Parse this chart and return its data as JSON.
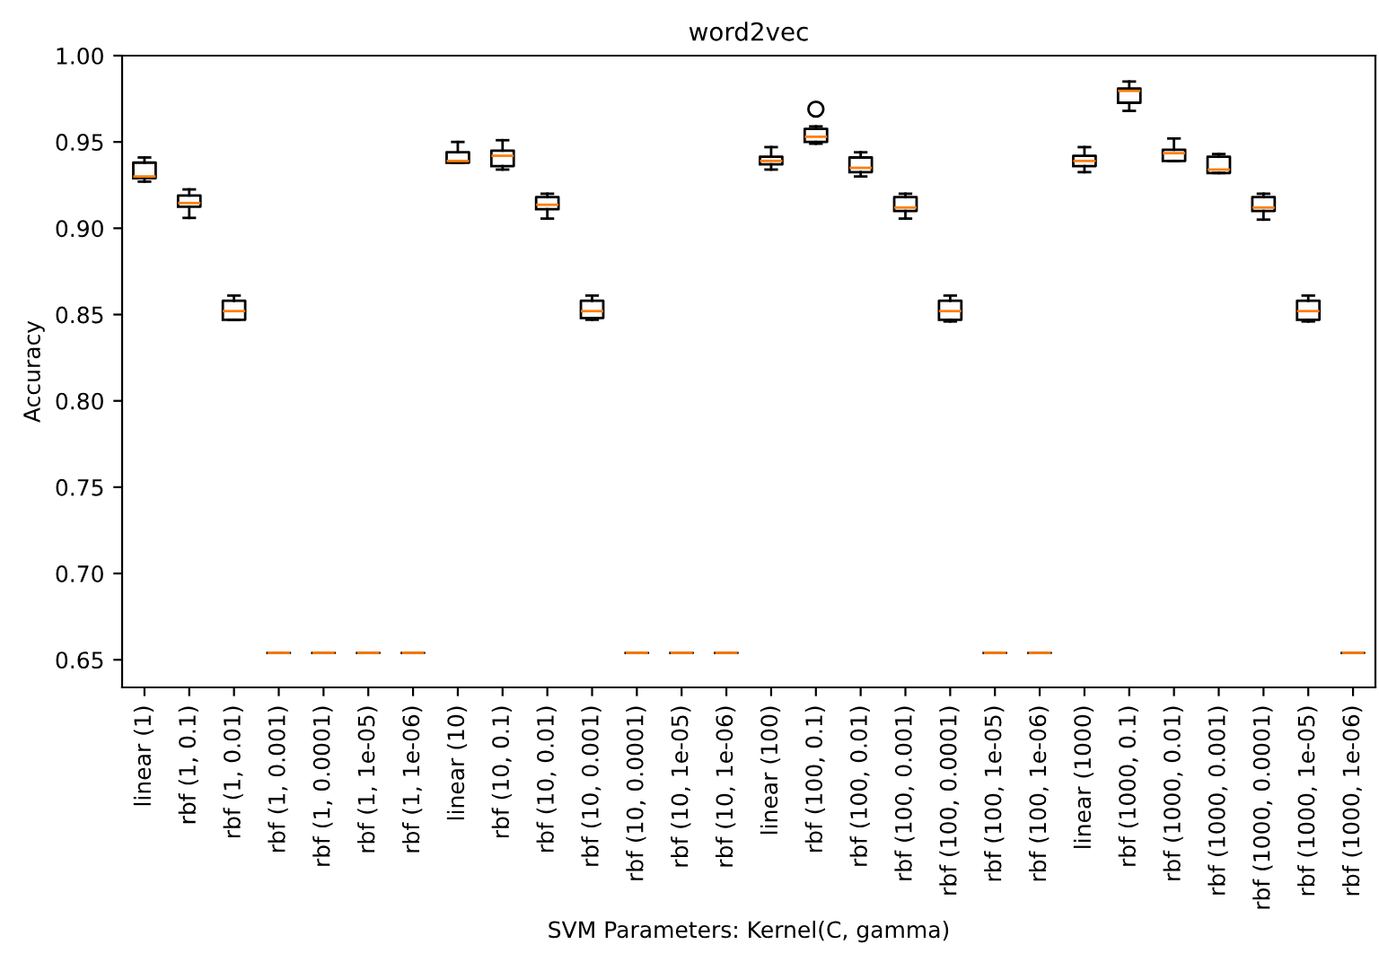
{
  "chart_data": {
    "type": "box",
    "title": "word2vec",
    "xlabel": "SVM Parameters: Kernel(C, gamma)",
    "ylabel": "Accuracy",
    "categories": [
      "linear (1)",
      "rbf (1, 0.1)",
      "rbf (1, 0.01)",
      "rbf (1, 0.001)",
      "rbf (1, 0.0001)",
      "rbf (1, 1e-05)",
      "rbf (1, 1e-06)",
      "linear (10)",
      "rbf (10, 0.1)",
      "rbf (10, 0.01)",
      "rbf (10, 0.001)",
      "rbf (10, 0.0001)",
      "rbf (10, 1e-05)",
      "rbf (10, 1e-06)",
      "linear (100)",
      "rbf (100, 0.1)",
      "rbf (100, 0.01)",
      "rbf (100, 0.001)",
      "rbf (100, 0.0001)",
      "rbf (100, 1e-05)",
      "rbf (100, 1e-06)",
      "linear (1000)",
      "rbf (1000, 0.1)",
      "rbf (1000, 0.01)",
      "rbf (1000, 0.001)",
      "rbf (1000, 0.0001)",
      "rbf (1000, 1e-05)",
      "rbf (1000, 1e-06)"
    ],
    "boxes": [
      {
        "low": 0.927,
        "q1": 0.929,
        "median": 0.93,
        "q3": 0.938,
        "high": 0.941
      },
      {
        "low": 0.906,
        "q1": 0.9125,
        "median": 0.9146,
        "q3": 0.919,
        "high": 0.9225
      },
      {
        "low": 0.847,
        "q1": 0.847,
        "median": 0.852,
        "q3": 0.858,
        "high": 0.861
      },
      {
        "low": 0.654,
        "q1": 0.654,
        "median": 0.654,
        "q3": 0.654,
        "high": 0.654
      },
      {
        "low": 0.654,
        "q1": 0.654,
        "median": 0.654,
        "q3": 0.654,
        "high": 0.654
      },
      {
        "low": 0.654,
        "q1": 0.654,
        "median": 0.654,
        "q3": 0.654,
        "high": 0.654
      },
      {
        "low": 0.654,
        "q1": 0.654,
        "median": 0.654,
        "q3": 0.654,
        "high": 0.654
      },
      {
        "low": 0.938,
        "q1": 0.938,
        "median": 0.939,
        "q3": 0.944,
        "high": 0.95
      },
      {
        "low": 0.934,
        "q1": 0.936,
        "median": 0.942,
        "q3": 0.945,
        "high": 0.951
      },
      {
        "low": 0.9056,
        "q1": 0.911,
        "median": 0.9136,
        "q3": 0.918,
        "high": 0.92
      },
      {
        "low": 0.847,
        "q1": 0.848,
        "median": 0.852,
        "q3": 0.858,
        "high": 0.861
      },
      {
        "low": 0.654,
        "q1": 0.654,
        "median": 0.654,
        "q3": 0.654,
        "high": 0.654
      },
      {
        "low": 0.654,
        "q1": 0.654,
        "median": 0.654,
        "q3": 0.654,
        "high": 0.654
      },
      {
        "low": 0.654,
        "q1": 0.654,
        "median": 0.654,
        "q3": 0.654,
        "high": 0.654
      },
      {
        "low": 0.934,
        "q1": 0.937,
        "median": 0.939,
        "q3": 0.9414,
        "high": 0.947
      },
      {
        "low": 0.949,
        "q1": 0.95,
        "median": 0.953,
        "q3": 0.9576,
        "high": 0.959,
        "outliers": [
          0.969
        ]
      },
      {
        "low": 0.93,
        "q1": 0.9325,
        "median": 0.935,
        "q3": 0.941,
        "high": 0.944
      },
      {
        "low": 0.9056,
        "q1": 0.91,
        "median": 0.912,
        "q3": 0.918,
        "high": 0.92
      },
      {
        "low": 0.846,
        "q1": 0.847,
        "median": 0.852,
        "q3": 0.858,
        "high": 0.861
      },
      {
        "low": 0.654,
        "q1": 0.654,
        "median": 0.654,
        "q3": 0.654,
        "high": 0.654
      },
      {
        "low": 0.654,
        "q1": 0.654,
        "median": 0.654,
        "q3": 0.654,
        "high": 0.654
      },
      {
        "low": 0.9325,
        "q1": 0.936,
        "median": 0.939,
        "q3": 0.942,
        "high": 0.947
      },
      {
        "low": 0.968,
        "q1": 0.9727,
        "median": 0.9796,
        "q3": 0.981,
        "high": 0.985
      },
      {
        "low": 0.939,
        "q1": 0.939,
        "median": 0.9435,
        "q3": 0.9455,
        "high": 0.952
      },
      {
        "low": 0.932,
        "q1": 0.932,
        "median": 0.934,
        "q3": 0.9414,
        "high": 0.943
      },
      {
        "low": 0.905,
        "q1": 0.91,
        "median": 0.912,
        "q3": 0.918,
        "high": 0.92
      },
      {
        "low": 0.846,
        "q1": 0.847,
        "median": 0.852,
        "q3": 0.858,
        "high": 0.861
      },
      {
        "low": 0.654,
        "q1": 0.654,
        "median": 0.654,
        "q3": 0.654,
        "high": 0.654
      }
    ],
    "ylim": [
      0.634,
      1.0
    ],
    "yticks": [
      {
        "value": 0.65,
        "label": "0.65"
      },
      {
        "value": 0.7,
        "label": "0.70"
      },
      {
        "value": 0.75,
        "label": "0.75"
      },
      {
        "value": 0.8,
        "label": "0.80"
      },
      {
        "value": 0.85,
        "label": "0.85"
      },
      {
        "value": 0.9,
        "label": "0.90"
      },
      {
        "value": 0.95,
        "label": "0.95"
      },
      {
        "value": 1.0,
        "label": "1.00"
      }
    ]
  }
}
